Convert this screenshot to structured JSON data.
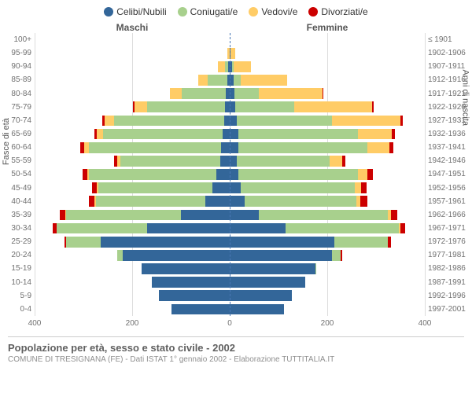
{
  "chart": {
    "type": "population-pyramid",
    "background_color": "#ffffff",
    "grid_color": "#dddddd",
    "center_line_color": "#4a78b5",
    "text_color": "#707070",
    "legend_items": [
      {
        "label": "Celibi/Nubili",
        "color": "#336699"
      },
      {
        "label": "Coniugati/e",
        "color": "#a8d08d"
      },
      {
        "label": "Vedovi/e",
        "color": "#ffcc66"
      },
      {
        "label": "Divorziati/e",
        "color": "#cc0000"
      }
    ],
    "header_left": "Maschi",
    "header_right": "Femmine",
    "y_title_left": "Fasce di età",
    "y_title_right": "Anni di nascita",
    "x_max": 400,
    "x_ticks": [
      400,
      200,
      0,
      200,
      400
    ],
    "age_groups": [
      "100+",
      "95-99",
      "90-94",
      "85-89",
      "80-84",
      "75-79",
      "70-74",
      "65-69",
      "60-64",
      "55-59",
      "50-54",
      "45-49",
      "40-44",
      "35-39",
      "30-34",
      "25-29",
      "20-24",
      "15-19",
      "10-14",
      "5-9",
      "0-4"
    ],
    "birth_years": [
      "≤ 1901",
      "1902-1906",
      "1907-1911",
      "1912-1916",
      "1917-1921",
      "1922-1926",
      "1927-1931",
      "1932-1936",
      "1937-1941",
      "1942-1946",
      "1947-1951",
      "1952-1956",
      "1957-1961",
      "1962-1966",
      "1967-1971",
      "1972-1976",
      "1977-1981",
      "1982-1986",
      "1987-1991",
      "1992-1996",
      "1997-2001"
    ],
    "male": [
      {
        "celibi": 0,
        "coniugati": 0,
        "vedovi": 0,
        "divorziati": 0
      },
      {
        "celibi": 0,
        "coniugati": 0,
        "vedovi": 5,
        "divorziati": 0
      },
      {
        "celibi": 3,
        "coniugati": 7,
        "vedovi": 15,
        "divorziati": 0
      },
      {
        "celibi": 5,
        "coniugati": 40,
        "vedovi": 20,
        "divorziati": 0
      },
      {
        "celibi": 8,
        "coniugati": 90,
        "vedovi": 25,
        "divorziati": 0
      },
      {
        "celibi": 10,
        "coniugati": 160,
        "vedovi": 25,
        "divorziati": 3
      },
      {
        "celibi": 12,
        "coniugati": 225,
        "vedovi": 20,
        "divorziati": 5
      },
      {
        "celibi": 15,
        "coniugati": 245,
        "vedovi": 12,
        "divorziati": 5
      },
      {
        "celibi": 18,
        "coniugati": 270,
        "vedovi": 10,
        "divorziati": 8
      },
      {
        "celibi": 20,
        "coniugati": 205,
        "vedovi": 5,
        "divorziati": 7
      },
      {
        "celibi": 28,
        "coniugati": 260,
        "vedovi": 4,
        "divorziati": 10
      },
      {
        "celibi": 35,
        "coniugati": 235,
        "vedovi": 3,
        "divorziati": 10
      },
      {
        "celibi": 50,
        "coniugati": 225,
        "vedovi": 2,
        "divorziati": 12
      },
      {
        "celibi": 100,
        "coniugati": 235,
        "vedovi": 2,
        "divorziati": 12
      },
      {
        "celibi": 170,
        "coniugati": 185,
        "vedovi": 0,
        "divorziati": 8
      },
      {
        "celibi": 265,
        "coniugati": 70,
        "vedovi": 0,
        "divorziati": 3
      },
      {
        "celibi": 220,
        "coniugati": 10,
        "vedovi": 0,
        "divorziati": 0
      },
      {
        "celibi": 180,
        "coniugati": 0,
        "vedovi": 0,
        "divorziati": 0
      },
      {
        "celibi": 160,
        "coniugati": 0,
        "vedovi": 0,
        "divorziati": 0
      },
      {
        "celibi": 145,
        "coniugati": 0,
        "vedovi": 0,
        "divorziati": 0
      },
      {
        "celibi": 120,
        "coniugati": 0,
        "vedovi": 0,
        "divorziati": 0
      }
    ],
    "female": [
      {
        "celibi": 0,
        "coniugati": 0,
        "vedovi": 0,
        "divorziati": 0
      },
      {
        "celibi": 2,
        "coniugati": 0,
        "vedovi": 10,
        "divorziati": 0
      },
      {
        "celibi": 5,
        "coniugati": 3,
        "vedovi": 35,
        "divorziati": 0
      },
      {
        "celibi": 8,
        "coniugati": 15,
        "vedovi": 95,
        "divorziati": 0
      },
      {
        "celibi": 10,
        "coniugati": 50,
        "vedovi": 130,
        "divorziati": 2
      },
      {
        "celibi": 12,
        "coniugati": 120,
        "vedovi": 160,
        "divorziati": 3
      },
      {
        "celibi": 15,
        "coniugati": 195,
        "vedovi": 140,
        "divorziati": 5
      },
      {
        "celibi": 18,
        "coniugati": 245,
        "vedovi": 70,
        "divorziati": 5
      },
      {
        "celibi": 18,
        "coniugati": 265,
        "vedovi": 45,
        "divorziati": 8
      },
      {
        "celibi": 15,
        "coniugati": 190,
        "vedovi": 25,
        "divorziati": 7
      },
      {
        "celibi": 18,
        "coniugati": 245,
        "vedovi": 20,
        "divorziati": 10
      },
      {
        "celibi": 22,
        "coniugati": 235,
        "vedovi": 12,
        "divorziati": 12
      },
      {
        "celibi": 30,
        "coniugati": 230,
        "vedovi": 8,
        "divorziati": 15
      },
      {
        "celibi": 60,
        "coniugati": 265,
        "vedovi": 5,
        "divorziati": 14
      },
      {
        "celibi": 115,
        "coniugati": 232,
        "vedovi": 3,
        "divorziati": 10
      },
      {
        "celibi": 215,
        "coniugati": 110,
        "vedovi": 0,
        "divorziati": 5
      },
      {
        "celibi": 210,
        "coniugati": 18,
        "vedovi": 0,
        "divorziati": 2
      },
      {
        "celibi": 175,
        "coniugati": 2,
        "vedovi": 0,
        "divorziati": 0
      },
      {
        "celibi": 155,
        "coniugati": 0,
        "vedovi": 0,
        "divorziati": 0
      },
      {
        "celibi": 128,
        "coniugati": 0,
        "vedovi": 0,
        "divorziati": 0
      },
      {
        "celibi": 112,
        "coniugati": 0,
        "vedovi": 0,
        "divorziati": 0
      }
    ]
  },
  "footer": {
    "title": "Popolazione per età, sesso e stato civile - 2002",
    "subtitle": "COMUNE DI TRESIGNANA (FE) - Dati ISTAT 1° gennaio 2002 - Elaborazione TUTTITALIA.IT"
  }
}
